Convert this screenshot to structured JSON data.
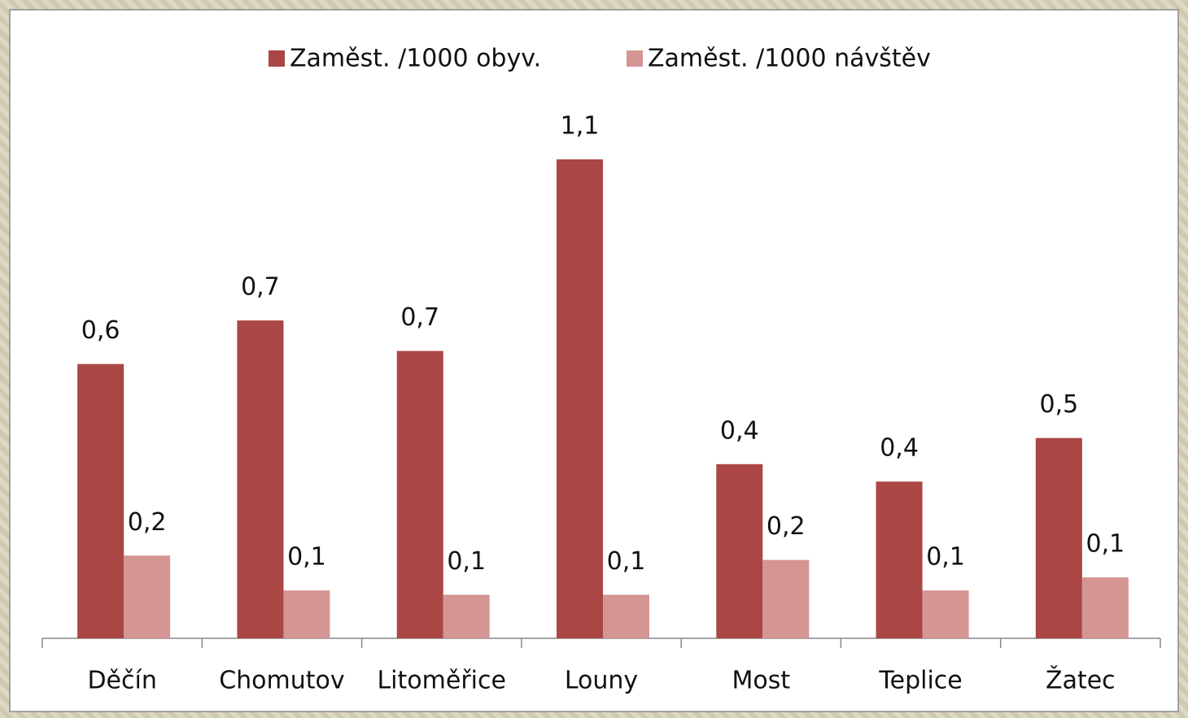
{
  "chart_data": {
    "type": "bar",
    "categories": [
      "Děčín",
      "Chomutov",
      "Litoměřice",
      "Louny",
      "Most",
      "Teplice",
      "Žatec"
    ],
    "series": [
      {
        "name": "Zaměst. /1000 obyv.",
        "color": "#aa4643",
        "values": [
          0.63,
          0.73,
          0.66,
          1.1,
          0.4,
          0.36,
          0.46
        ],
        "value_labels": [
          "0,6",
          "0,7",
          "0,7",
          "1,1",
          "0,4",
          "0,4",
          "0,5"
        ]
      },
      {
        "name": "Zaměst. /1000 návštěv",
        "color": "#d49593",
        "values": [
          0.19,
          0.11,
          0.1,
          0.1,
          0.18,
          0.11,
          0.14
        ],
        "value_labels": [
          "0,2",
          "0,1",
          "0,1",
          "0,1",
          "0,2",
          "0,1",
          "0,1"
        ]
      }
    ],
    "legend": "top"
  }
}
